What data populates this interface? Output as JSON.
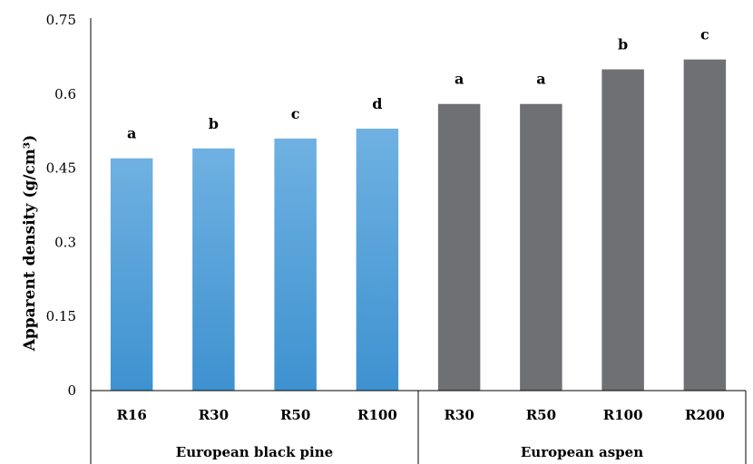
{
  "chart_data": {
    "type": "bar",
    "ylabel": "Apparent density (g/cm³)",
    "ylim": [
      0,
      0.75
    ],
    "yticks": [
      "0",
      "0.15",
      "0.3",
      "0.45",
      "0.6",
      "0.75"
    ],
    "grid": false,
    "groups": [
      {
        "name": "European black pine",
        "color": "#5aa5dc",
        "categories": [
          "R16",
          "R30",
          "R50",
          "R100"
        ],
        "values": [
          0.47,
          0.49,
          0.51,
          0.53
        ],
        "letters": [
          "a",
          "b",
          "c",
          "d"
        ]
      },
      {
        "name": "European aspen",
        "color": "#6f7074",
        "categories": [
          "R30",
          "R50",
          "R100",
          "R200"
        ],
        "values": [
          0.58,
          0.58,
          0.65,
          0.67
        ],
        "letters": [
          "a",
          "a",
          "b",
          "c"
        ]
      }
    ]
  }
}
